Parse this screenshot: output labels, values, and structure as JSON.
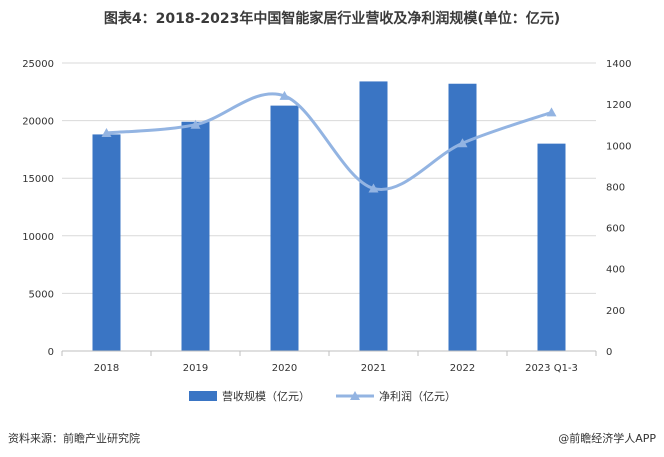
{
  "title": "图表4：2018-2023年中国智能家居行业营收及净利润规模(单位：亿元)",
  "footer": {
    "source": "资料来源：前瞻产业研究院",
    "credit": "@前瞻经济学人APP"
  },
  "colors": {
    "bar": "#3a75c4",
    "line": "#93b4e2",
    "grid": "#d9d9d9",
    "axis_text": "#333333"
  },
  "chart_data": {
    "type": "bar",
    "categories": [
      "2018",
      "2019",
      "2020",
      "2021",
      "2022",
      "2023 Q1-3"
    ],
    "series": [
      {
        "name": "营收规模（亿元）",
        "type": "bar",
        "axis": "left",
        "values": [
          18800,
          19900,
          21300,
          23400,
          23200,
          18000
        ]
      },
      {
        "name": "净利润（亿元）",
        "type": "line",
        "axis": "right",
        "marker": "triangle",
        "values": [
          1060,
          1100,
          1240,
          790,
          1010,
          1160
        ]
      }
    ],
    "y_left": {
      "min": 0,
      "max": 25000,
      "ticks": [
        "0",
        "5000",
        "10000",
        "15000",
        "20000",
        "25000"
      ]
    },
    "y_right": {
      "min": 0,
      "max": 1400,
      "ticks": [
        "0",
        "200",
        "400",
        "600",
        "800",
        "1000",
        "1200",
        "1400"
      ]
    },
    "grid": true,
    "legend_position": "bottom"
  }
}
